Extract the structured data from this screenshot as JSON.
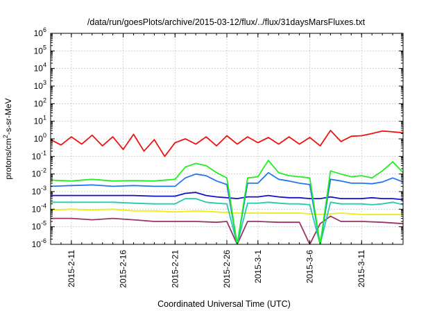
{
  "chart_data": {
    "type": "line",
    "title": "/data/run/goesPlots/archive/2015-03-12/flux/../flux/31daysMarsFluxes.txt",
    "xlabel": "Coordinated Universal Time (UTC)",
    "ylabel_parts": [
      "protons/cm",
      "2",
      "-s-sr-MeV"
    ],
    "y_scale": "log",
    "ylim": [
      1e-06,
      1000000.0
    ],
    "xlim": [
      "2015-02-09",
      "2015-03-15"
    ],
    "x_ticks": [
      "2015-2-11",
      "2015-2-16",
      "2015-2-21",
      "2015-2-26",
      "2015-3-1",
      "2015-3-6",
      "2015-3-11"
    ],
    "y_ticks": [
      {
        "base": "10",
        "exp": "-6"
      },
      {
        "base": "10",
        "exp": "-5"
      },
      {
        "base": "10",
        "exp": "-4"
      },
      {
        "base": "10",
        "exp": "-3"
      },
      {
        "base": "10",
        "exp": "-2"
      },
      {
        "base": "10",
        "exp": "-1"
      },
      {
        "base": "10",
        "exp": "0"
      },
      {
        "base": "10",
        "exp": "1"
      },
      {
        "base": "10",
        "exp": "2"
      },
      {
        "base": "10",
        "exp": "3"
      },
      {
        "base": "10",
        "exp": "4"
      },
      {
        "base": "10",
        "exp": "5"
      },
      {
        "base": "10",
        "exp": "6"
      }
    ],
    "grid": true,
    "legend": "none",
    "series": [
      {
        "color": "#ee1111",
        "points": [
          [
            "2015-02-09",
            0.9
          ],
          [
            "2015-02-10",
            0.45
          ],
          [
            "2015-02-11",
            1.3
          ],
          [
            "2015-02-12",
            0.5
          ],
          [
            "2015-02-13",
            1.6
          ],
          [
            "2015-02-14",
            0.4
          ],
          [
            "2015-02-15",
            1.3
          ],
          [
            "2015-02-16",
            0.25
          ],
          [
            "2015-02-17",
            1.8
          ],
          [
            "2015-02-18",
            0.2
          ],
          [
            "2015-02-19",
            0.9
          ],
          [
            "2015-02-20",
            0.1
          ],
          [
            "2015-02-21",
            0.6
          ],
          [
            "2015-02-22",
            1.0
          ],
          [
            "2015-02-23",
            0.5
          ],
          [
            "2015-02-24",
            1.3
          ],
          [
            "2015-02-25",
            0.4
          ],
          [
            "2015-02-26",
            1.5
          ],
          [
            "2015-02-27",
            0.5
          ],
          [
            "2015-02-28",
            1.3
          ],
          [
            "2015-03-01",
            0.6
          ],
          [
            "2015-03-02",
            1.2
          ],
          [
            "2015-03-03",
            0.5
          ],
          [
            "2015-03-04",
            1.3
          ],
          [
            "2015-03-05",
            0.5
          ],
          [
            "2015-03-06",
            1.2
          ],
          [
            "2015-03-07",
            0.4
          ],
          [
            "2015-03-08",
            3.0
          ],
          [
            "2015-03-09",
            0.7
          ],
          [
            "2015-03-10",
            1.4
          ],
          [
            "2015-03-11",
            1.5
          ],
          [
            "2015-03-12",
            2.0
          ],
          [
            "2015-03-13",
            2.8
          ],
          [
            "2015-03-14",
            2.5
          ],
          [
            "2015-03-15",
            2.2
          ]
        ]
      },
      {
        "color": "#22ee22",
        "points": [
          [
            "2015-02-09",
            0.0045
          ],
          [
            "2015-02-11",
            0.004
          ],
          [
            "2015-02-13",
            0.005
          ],
          [
            "2015-02-15",
            0.004
          ],
          [
            "2015-02-17",
            0.0042
          ],
          [
            "2015-02-19",
            0.004
          ],
          [
            "2015-02-21",
            0.005
          ],
          [
            "2015-02-22",
            0.025
          ],
          [
            "2015-02-23",
            0.04
          ],
          [
            "2015-02-24",
            0.03
          ],
          [
            "2015-02-25",
            0.012
          ],
          [
            "2015-02-26",
            0.006
          ],
          [
            "2015-02-27",
            1e-06
          ],
          [
            "2015-02-28",
            0.006
          ],
          [
            "2015-03-01",
            0.007
          ],
          [
            "2015-03-02",
            0.06
          ],
          [
            "2015-03-03",
            0.012
          ],
          [
            "2015-03-04",
            0.008
          ],
          [
            "2015-03-05",
            0.007
          ],
          [
            "2015-03-06",
            0.006
          ],
          [
            "2015-03-07",
            1e-06
          ],
          [
            "2015-03-08",
            0.015
          ],
          [
            "2015-03-09",
            0.01
          ],
          [
            "2015-03-10",
            0.007
          ],
          [
            "2015-03-11",
            0.008
          ],
          [
            "2015-03-12",
            0.006
          ],
          [
            "2015-03-13",
            0.015
          ],
          [
            "2015-03-14",
            0.05
          ],
          [
            "2015-03-15",
            0.012
          ]
        ]
      },
      {
        "color": "#2277ee",
        "points": [
          [
            "2015-02-09",
            0.002
          ],
          [
            "2015-02-11",
            0.0022
          ],
          [
            "2015-02-13",
            0.0024
          ],
          [
            "2015-02-15",
            0.002
          ],
          [
            "2015-02-17",
            0.0022
          ],
          [
            "2015-02-19",
            0.002
          ],
          [
            "2015-02-21",
            0.002
          ],
          [
            "2015-02-22",
            0.006
          ],
          [
            "2015-02-23",
            0.01
          ],
          [
            "2015-02-24",
            0.008
          ],
          [
            "2015-02-25",
            0.004
          ],
          [
            "2015-02-26",
            0.0025
          ],
          [
            "2015-02-27",
            1e-06
          ],
          [
            "2015-02-28",
            0.003
          ],
          [
            "2015-03-01",
            0.003
          ],
          [
            "2015-03-02",
            0.012
          ],
          [
            "2015-03-03",
            0.005
          ],
          [
            "2015-03-04",
            0.004
          ],
          [
            "2015-03-05",
            0.003
          ],
          [
            "2015-03-06",
            0.0025
          ],
          [
            "2015-03-07",
            1e-06
          ],
          [
            "2015-03-08",
            0.005
          ],
          [
            "2015-03-09",
            0.004
          ],
          [
            "2015-03-10",
            0.003
          ],
          [
            "2015-03-11",
            0.003
          ],
          [
            "2015-03-12",
            0.0028
          ],
          [
            "2015-03-13",
            0.0035
          ],
          [
            "2015-03-14",
            0.006
          ],
          [
            "2015-03-15",
            0.0035
          ]
        ]
      },
      {
        "color": "#1111cc",
        "points": [
          [
            "2015-02-09",
            0.0006
          ],
          [
            "2015-02-11",
            0.0006
          ],
          [
            "2015-02-13",
            0.0006
          ],
          [
            "2015-02-15",
            0.0006
          ],
          [
            "2015-02-17",
            0.0006
          ],
          [
            "2015-02-19",
            0.00055
          ],
          [
            "2015-02-21",
            0.00055
          ],
          [
            "2015-02-22",
            0.0008
          ],
          [
            "2015-02-23",
            0.0009
          ],
          [
            "2015-02-24",
            0.0006
          ],
          [
            "2015-02-25",
            0.0005
          ],
          [
            "2015-02-26",
            0.00045
          ],
          [
            "2015-02-27",
            0.0004
          ],
          [
            "2015-02-28",
            0.0005
          ],
          [
            "2015-03-01",
            0.0005
          ],
          [
            "2015-03-02",
            0.0006
          ],
          [
            "2015-03-03",
            0.0005
          ],
          [
            "2015-03-04",
            0.00045
          ],
          [
            "2015-03-05",
            0.00045
          ],
          [
            "2015-03-06",
            0.0004
          ],
          [
            "2015-03-07",
            0.0004
          ],
          [
            "2015-03-08",
            0.0005
          ],
          [
            "2015-03-09",
            0.0004
          ],
          [
            "2015-03-10",
            0.0004
          ],
          [
            "2015-03-11",
            0.0004
          ],
          [
            "2015-03-12",
            0.00045
          ],
          [
            "2015-03-13",
            0.0004
          ],
          [
            "2015-03-14",
            0.0004
          ],
          [
            "2015-03-15",
            0.00035
          ]
        ]
      },
      {
        "color": "#22ccaa",
        "points": [
          [
            "2015-02-09",
            0.00025
          ],
          [
            "2015-02-11",
            0.00025
          ],
          [
            "2015-02-13",
            0.00025
          ],
          [
            "2015-02-15",
            0.00025
          ],
          [
            "2015-02-17",
            0.00022
          ],
          [
            "2015-02-19",
            0.0002
          ],
          [
            "2015-02-21",
            0.0002
          ],
          [
            "2015-02-22",
            0.0004
          ],
          [
            "2015-02-23",
            0.0004
          ],
          [
            "2015-02-24",
            0.00025
          ],
          [
            "2015-02-25",
            0.00022
          ],
          [
            "2015-02-26",
            0.0002
          ],
          [
            "2015-02-27",
            1e-06
          ],
          [
            "2015-02-28",
            0.00022
          ],
          [
            "2015-03-01",
            0.00022
          ],
          [
            "2015-03-02",
            0.00025
          ],
          [
            "2015-03-03",
            0.00022
          ],
          [
            "2015-03-04",
            0.0002
          ],
          [
            "2015-03-05",
            0.0002
          ],
          [
            "2015-03-06",
            0.00018
          ],
          [
            "2015-03-07",
            1e-06
          ],
          [
            "2015-03-08",
            0.00025
          ],
          [
            "2015-03-09",
            0.0002
          ],
          [
            "2015-03-10",
            0.0002
          ],
          [
            "2015-03-11",
            0.0002
          ],
          [
            "2015-03-12",
            0.00018
          ],
          [
            "2015-03-13",
            0.0002
          ],
          [
            "2015-03-14",
            0.00025
          ],
          [
            "2015-03-15",
            0.00018
          ]
        ]
      },
      {
        "color": "#eeee11",
        "points": [
          [
            "2015-02-09",
            9e-05
          ],
          [
            "2015-02-11",
            0.0001
          ],
          [
            "2015-02-13",
            9e-05
          ],
          [
            "2015-02-15",
            0.0001
          ],
          [
            "2015-02-17",
            8e-05
          ],
          [
            "2015-02-19",
            8e-05
          ],
          [
            "2015-02-21",
            7e-05
          ],
          [
            "2015-02-23",
            8e-05
          ],
          [
            "2015-02-25",
            7e-05
          ],
          [
            "2015-02-27",
            6e-05
          ],
          [
            "2015-03-01",
            6e-05
          ],
          [
            "2015-03-03",
            6e-05
          ],
          [
            "2015-03-05",
            6e-05
          ],
          [
            "2015-03-07",
            5e-05
          ],
          [
            "2015-03-09",
            6e-05
          ],
          [
            "2015-03-11",
            5e-05
          ],
          [
            "2015-03-13",
            5e-05
          ],
          [
            "2015-03-15",
            5e-05
          ]
        ]
      },
      {
        "color": "#993366",
        "points": [
          [
            "2015-02-09",
            3e-05
          ],
          [
            "2015-02-11",
            3e-05
          ],
          [
            "2015-02-13",
            2.5e-05
          ],
          [
            "2015-02-15",
            3e-05
          ],
          [
            "2015-02-17",
            2.5e-05
          ],
          [
            "2015-02-19",
            2e-05
          ],
          [
            "2015-02-21",
            2e-05
          ],
          [
            "2015-02-23",
            2e-05
          ],
          [
            "2015-02-25",
            1.8e-05
          ],
          [
            "2015-02-26",
            2e-05
          ],
          [
            "2015-02-27",
            1e-06
          ],
          [
            "2015-02-28",
            2e-05
          ],
          [
            "2015-03-01",
            2e-05
          ],
          [
            "2015-03-03",
            1.8e-05
          ],
          [
            "2015-03-05",
            1.8e-05
          ],
          [
            "2015-03-06",
            1e-06
          ],
          [
            "2015-03-07",
            1.5e-05
          ],
          [
            "2015-03-08",
            4e-05
          ],
          [
            "2015-03-09",
            2e-05
          ],
          [
            "2015-03-11",
            2e-05
          ],
          [
            "2015-03-13",
            1.8e-05
          ],
          [
            "2015-03-15",
            1.5e-05
          ]
        ]
      }
    ]
  }
}
